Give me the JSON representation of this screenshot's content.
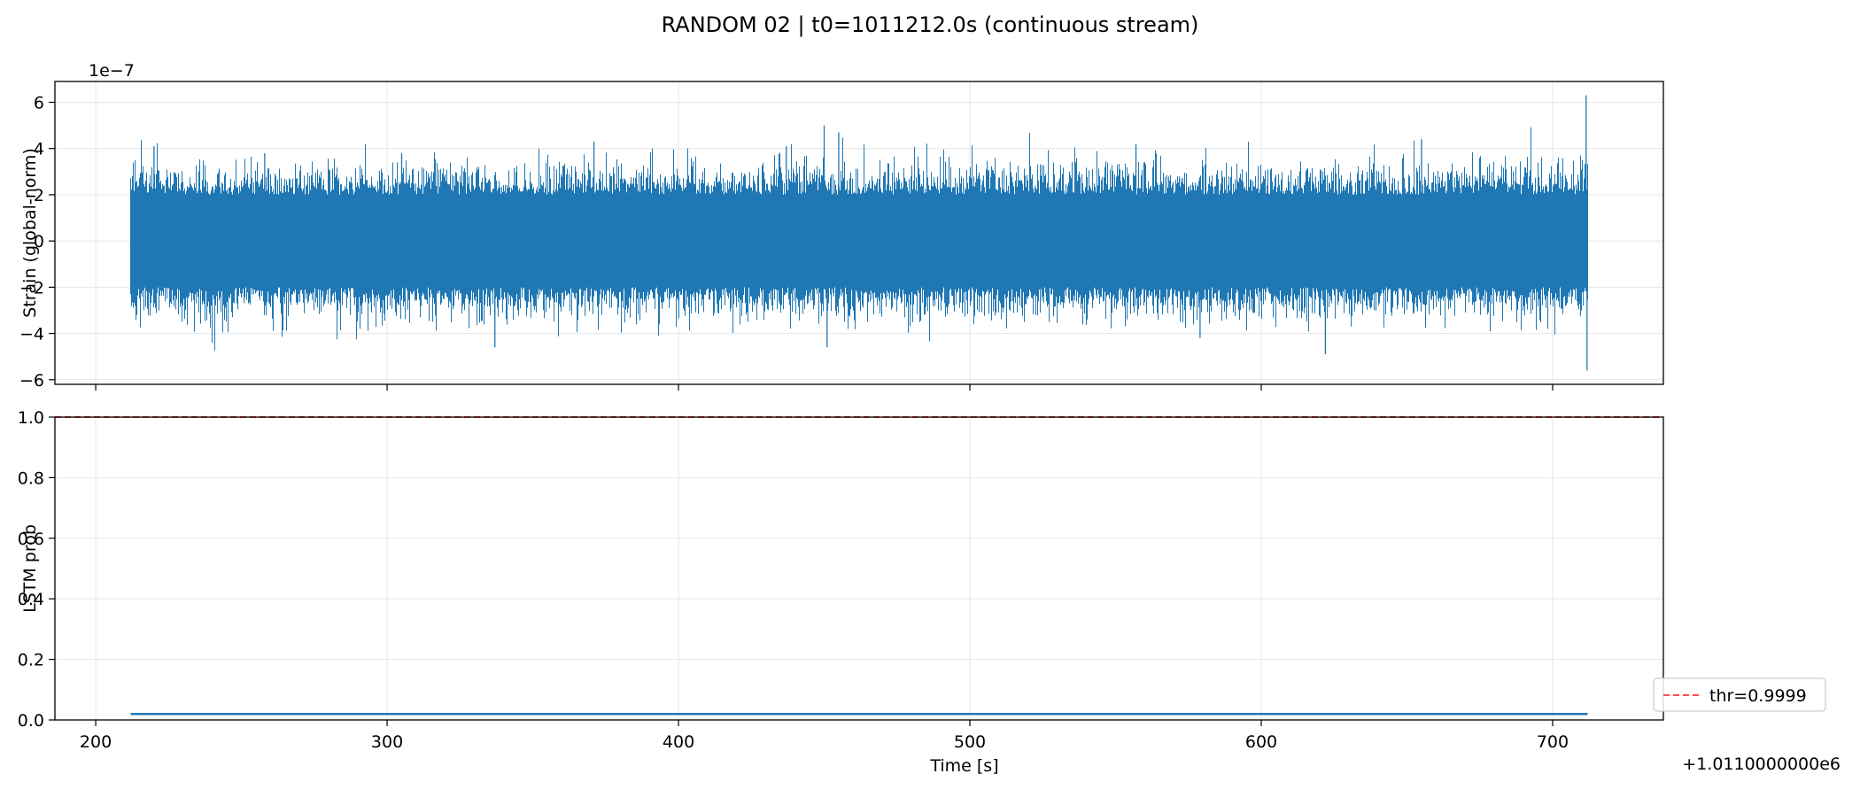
{
  "figure": {
    "title": "RANDOM 02 | t0=1011212.0s (continuous stream)"
  },
  "chart_data": [
    {
      "type": "line",
      "panel": "top",
      "ylabel": "Strain (global-norm)",
      "y_offset_label": "1e−7",
      "xlim": [
        186,
        738
      ],
      "ylim": [
        -6.2,
        6.9
      ],
      "x_ticks": [
        200,
        300,
        400,
        500,
        600,
        700
      ],
      "y_ticks": [
        -6,
        -4,
        -2,
        0,
        2,
        4,
        6
      ],
      "y_tick_labels": [
        "−6",
        "−4",
        "−2",
        "0",
        "2",
        "4",
        "6"
      ],
      "grid": true,
      "series": [
        {
          "color": "#1f77b4",
          "x_range": [
            212,
            712
          ],
          "envelope": {
            "typical_upper": 2.0,
            "typical_lower": -2.0,
            "peaks": [
              {
                "x": 220,
                "y": 4.1
              },
              {
                "x": 258,
                "y": 3.8
              },
              {
                "x": 305,
                "y": 3.8
              },
              {
                "x": 337,
                "y": -4.6
              },
              {
                "x": 371,
                "y": 4.3
              },
              {
                "x": 437,
                "y": 4.1
              },
              {
                "x": 450,
                "y": 5.0
              },
              {
                "x": 451,
                "y": -4.6
              },
              {
                "x": 455,
                "y": 4.7
              },
              {
                "x": 557,
                "y": 4.2
              },
              {
                "x": 579,
                "y": -4.2
              },
              {
                "x": 622,
                "y": -4.9
              },
              {
                "x": 655,
                "y": 4.4
              },
              {
                "x": 711.5,
                "y": 6.3
              },
              {
                "x": 711.8,
                "y": -5.6
              }
            ]
          }
        }
      ]
    },
    {
      "type": "line",
      "panel": "bottom",
      "xlabel": "Time [s]",
      "ylabel": "LSTM prob",
      "x_offset_label": "+1.0110000000e6",
      "xlim": [
        186,
        738
      ],
      "ylim": [
        0.0,
        1.0
      ],
      "x_ticks": [
        200,
        300,
        400,
        500,
        600,
        700
      ],
      "x_tick_labels": [
        "200",
        "300",
        "400",
        "500",
        "600",
        "700"
      ],
      "y_ticks": [
        0.0,
        0.2,
        0.4,
        0.6,
        0.8,
        1.0
      ],
      "y_tick_labels": [
        "0.0",
        "0.2",
        "0.4",
        "0.6",
        "0.8",
        "1.0"
      ],
      "grid": true,
      "series": [
        {
          "color": "#1f77b4",
          "x": [
            212,
            712
          ],
          "y": [
            0.02,
            0.02
          ]
        }
      ],
      "threshold": {
        "value": 0.9999,
        "color": "#ff4d4d",
        "style": "dashed"
      },
      "legend": {
        "position": "lower-right",
        "entries": [
          "thr=0.9999"
        ]
      }
    }
  ]
}
